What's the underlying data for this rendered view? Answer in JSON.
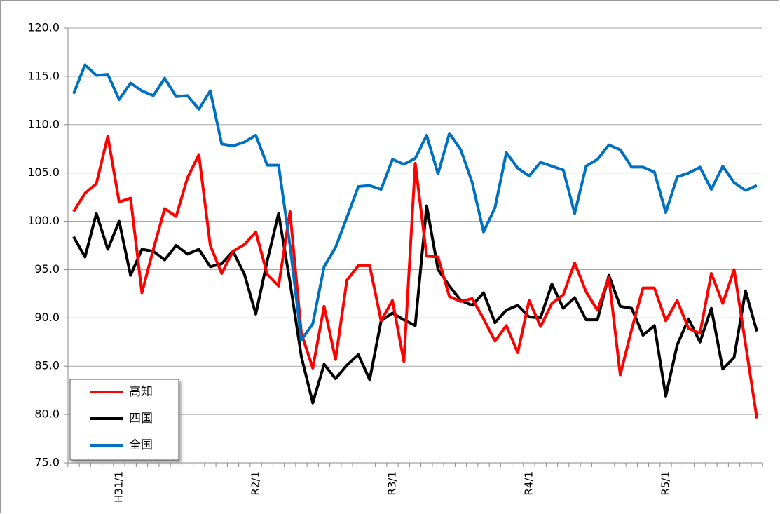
{
  "chart_data": {
    "type": "line",
    "categories": [
      null,
      null,
      null,
      null,
      "H31/1",
      null,
      null,
      null,
      null,
      null,
      null,
      null,
      null,
      null,
      null,
      null,
      "R2/1",
      null,
      null,
      null,
      null,
      null,
      null,
      null,
      null,
      null,
      null,
      null,
      "R3/1",
      null,
      null,
      null,
      null,
      null,
      null,
      null,
      null,
      null,
      null,
      null,
      "R4/1",
      null,
      null,
      null,
      null,
      null,
      null,
      null,
      null,
      null,
      null,
      null,
      "R5/1",
      null,
      null,
      null,
      null,
      null,
      null,
      null,
      null
    ],
    "series": [
      {
        "name": "高知",
        "color": "#ff0000",
        "values": [
          101.0,
          102.9,
          103.9,
          108.8,
          102.0,
          102.4,
          92.6,
          97.1,
          101.3,
          100.5,
          104.5,
          106.9,
          97.5,
          94.6,
          96.9,
          97.6,
          98.9,
          94.5,
          93.3,
          101.0,
          88.4,
          84.8,
          91.2,
          85.7,
          93.9,
          95.4,
          95.4,
          89.7,
          91.8,
          85.5,
          106.0,
          96.4,
          96.3,
          92.2,
          91.7,
          92.0,
          89.9,
          87.6,
          89.2,
          86.4,
          91.8,
          89.1,
          91.5,
          92.4,
          95.7,
          92.7,
          90.8,
          94.2,
          84.1,
          88.8,
          93.1,
          93.1,
          89.7,
          91.8,
          88.9,
          88.4,
          94.6,
          91.5,
          95.0,
          87.3,
          79.6
        ]
      },
      {
        "name": "四国",
        "color": "#000000",
        "values": [
          98.4,
          96.3,
          100.8,
          97.1,
          100.0,
          94.4,
          97.1,
          96.9,
          96.0,
          97.5,
          96.6,
          97.1,
          95.3,
          95.6,
          96.9,
          94.5,
          90.4,
          95.9,
          100.8,
          93.7,
          86.0,
          81.2,
          85.2,
          83.7,
          85.1,
          86.2,
          83.6,
          89.7,
          90.5,
          89.8,
          89.2,
          101.6,
          95.0,
          93.3,
          91.8,
          91.3,
          92.6,
          89.5,
          90.8,
          91.3,
          90.1,
          90.0,
          93.5,
          91.0,
          92.1,
          89.8,
          89.8,
          94.4,
          91.2,
          91.0,
          88.2,
          89.2,
          81.9,
          87.2,
          89.9,
          87.5,
          91.0,
          84.7,
          85.9,
          92.8,
          88.6
        ]
      },
      {
        "name": "全国",
        "color": "#0070c0",
        "values": [
          113.2,
          116.2,
          115.1,
          115.2,
          112.6,
          114.3,
          113.5,
          113.0,
          114.8,
          112.9,
          113.0,
          111.6,
          113.5,
          108.0,
          107.8,
          108.2,
          108.9,
          105.8,
          105.8,
          97.5,
          87.7,
          89.4,
          95.3,
          97.3,
          100.4,
          103.6,
          103.7,
          103.3,
          106.4,
          105.9,
          106.5,
          108.9,
          104.9,
          109.1,
          107.4,
          104.0,
          98.9,
          101.4,
          107.1,
          105.5,
          104.7,
          106.1,
          105.7,
          105.3,
          100.8,
          105.7,
          106.4,
          107.9,
          107.4,
          105.6,
          105.6,
          105.1,
          100.9,
          104.6,
          105.0,
          105.6,
          103.3,
          105.7,
          104.0,
          103.2,
          103.7
        ]
      }
    ],
    "ylim": [
      75,
      120
    ],
    "yticks": [
      {
        "value": 75,
        "label": "75.0"
      },
      {
        "value": 80,
        "label": "80.0"
      },
      {
        "value": 85,
        "label": "85.0"
      },
      {
        "value": 90,
        "label": "90.0"
      },
      {
        "value": 95,
        "label": "95.0"
      },
      {
        "value": 100,
        "label": "100.0"
      },
      {
        "value": 105,
        "label": "105.0"
      },
      {
        "value": 110,
        "label": "110.0"
      },
      {
        "value": 115,
        "label": "115.0"
      },
      {
        "value": 120,
        "label": "120.0"
      }
    ],
    "grid": true,
    "legend": "lower-left"
  }
}
